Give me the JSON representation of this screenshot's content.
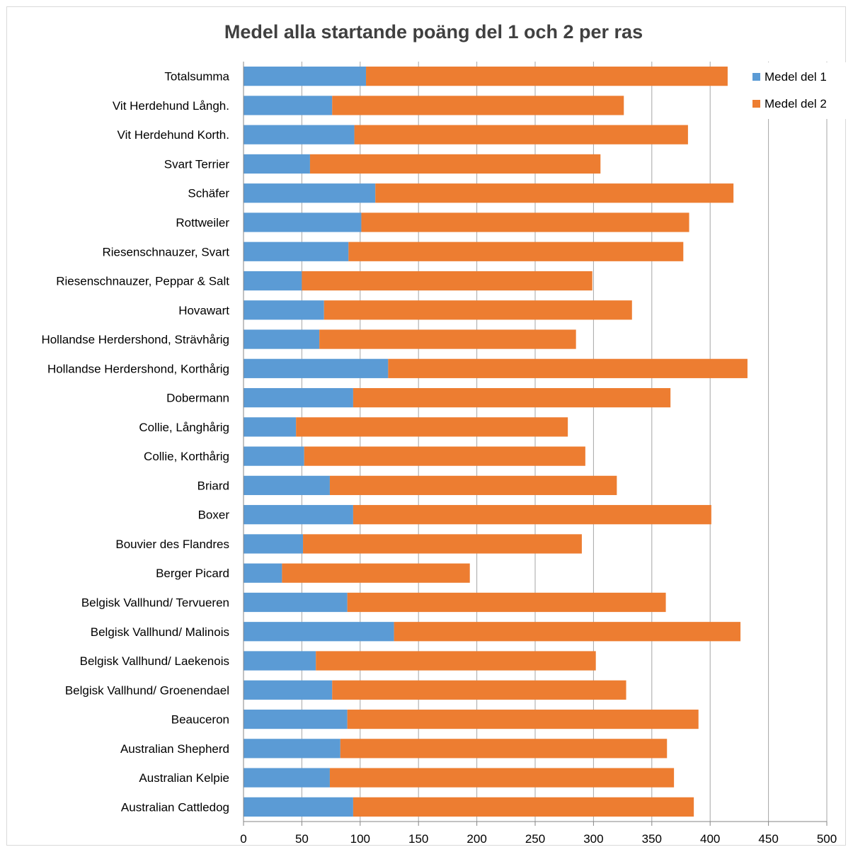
{
  "chart_data": {
    "type": "bar",
    "orientation": "horizontal",
    "stacked": true,
    "title": "Medel alla startande poäng del 1 och 2 per ras",
    "categories": [
      "Totalsumma",
      "Vit Herdehund Långh.",
      "Vit Herdehund Korth.",
      "Svart Terrier",
      "Schäfer",
      "Rottweiler",
      "Riesenschnauzer, Svart",
      "Riesenschnauzer, Peppar & Salt",
      "Hovawart",
      "Hollandse Herdershond, Strävhårig",
      "Hollandse Herdershond, Korthårig",
      "Dobermann",
      "Collie, Långhårig",
      "Collie, Korthårig",
      "Briard",
      "Boxer",
      "Bouvier des Flandres",
      "Berger Picard",
      "Belgisk Vallhund/ Tervueren",
      "Belgisk Vallhund/ Malinois",
      "Belgisk Vallhund/ Laekenois",
      "Belgisk Vallhund/ Groenendael",
      "Beauceron",
      "Australian Shepherd",
      "Australian Kelpie",
      "Australian Cattledog"
    ],
    "series": [
      {
        "name": "Medel del 1",
        "color": "#5b9bd5",
        "values": [
          105,
          76,
          95,
          57,
          113,
          101,
          90,
          50,
          69,
          65,
          124,
          94,
          45,
          52,
          74,
          94,
          51,
          33,
          89,
          129,
          62,
          76,
          89,
          83,
          74,
          94
        ]
      },
      {
        "name": "Medel del 2",
        "color": "#ed7d31",
        "values": [
          310,
          250,
          286,
          249,
          307,
          281,
          287,
          249,
          264,
          220,
          308,
          272,
          233,
          241,
          246,
          307,
          239,
          161,
          273,
          297,
          240,
          252,
          301,
          280,
          295,
          292
        ]
      }
    ],
    "xlim": [
      0,
      500
    ],
    "xticks": [
      "0",
      "50",
      "100",
      "150",
      "200",
      "250",
      "300",
      "350",
      "400",
      "450",
      "500"
    ],
    "grid": "vertical",
    "legend": "top-right",
    "xlabel": "",
    "ylabel": ""
  }
}
